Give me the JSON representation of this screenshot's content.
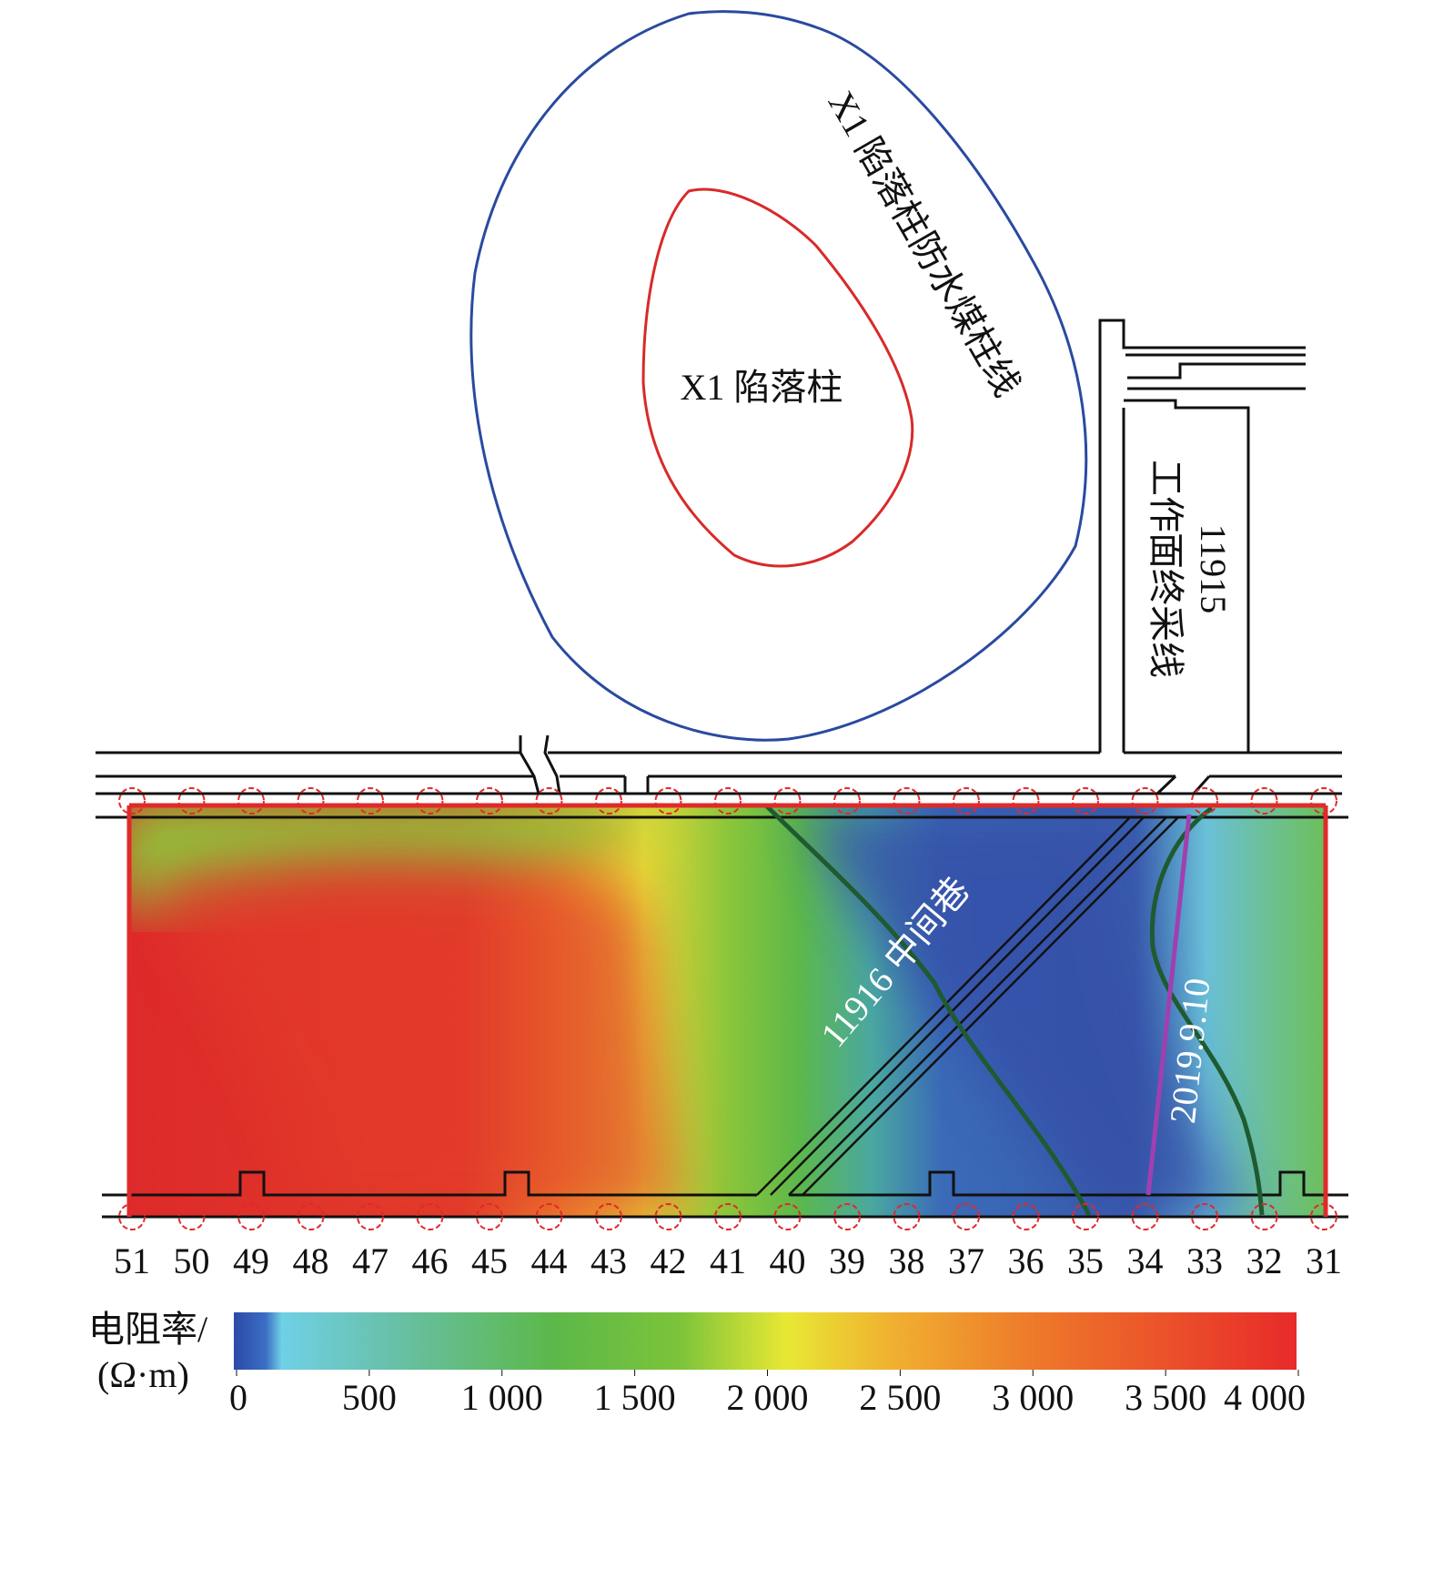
{
  "labels": {
    "pillar_line": "X1 陷落柱防水煤柱线",
    "pillar": "X1 陷落柱",
    "face_number": "11915",
    "face_line": "工作面终采线",
    "roadway": "11916 中间巷",
    "date": "2019.9.10"
  },
  "stations": [
    "51",
    "50",
    "49",
    "48",
    "47",
    "46",
    "45",
    "44",
    "43",
    "42",
    "41",
    "40",
    "39",
    "38",
    "37",
    "36",
    "35",
    "34",
    "33",
    "32",
    "31"
  ],
  "colorbar": {
    "title": "电阻率/",
    "unit": "(Ω·m)",
    "range": [
      0,
      4000
    ],
    "ticks": [
      0,
      500,
      {
        "value": 1000,
        "label": "1 000"
      },
      {
        "value": 1500,
        "label": "1 500"
      },
      {
        "value": 2000,
        "label": "2 000"
      },
      {
        "value": 2500,
        "label": "2 500"
      },
      {
        "value": 3000,
        "label": "3 000"
      },
      {
        "value": 3500,
        "label": "3 500"
      },
      {
        "value": 4000,
        "label": "4 000"
      }
    ]
  }
}
